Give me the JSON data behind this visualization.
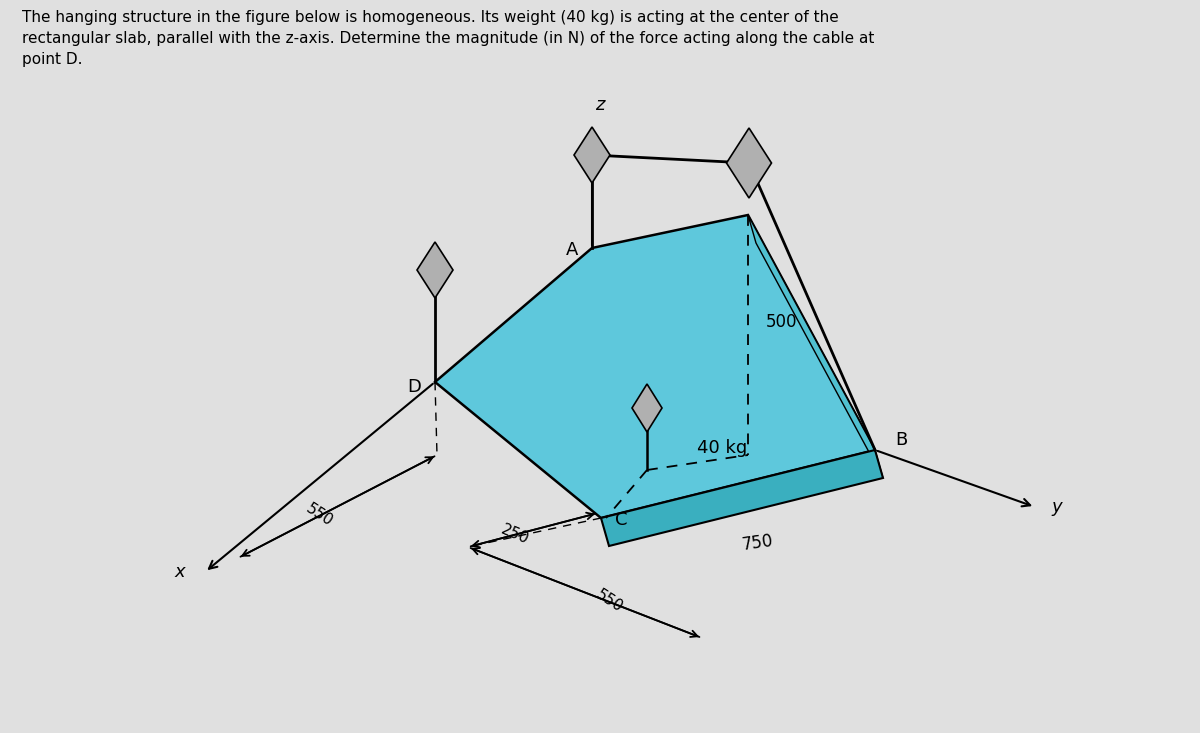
{
  "title_text": "The hanging structure in the figure below is homogeneous. Its weight (40 kg) is acting at the center of the\nrectangular slab, parallel with the z-axis. Determine the magnitude (in N) of the force acting along the cable at\npoint D.",
  "bg_color": "#e0e0e0",
  "slab_top_color": "#5ec8dc",
  "slab_side_color": "#3aafbf",
  "slab_edge_color": "#000000",
  "anchor_color": "#a8a8a8",
  "dim_500": "500",
  "dim_250": "250",
  "dim_550a": "550",
  "dim_550b": "550",
  "dim_750": "750",
  "weight_label": "40 kg",
  "point_A": "A",
  "point_B": "B",
  "point_C": "C",
  "point_D": "D",
  "axis_x": "x",
  "axis_y": "y",
  "axis_z": "z",
  "fig_width": 12.0,
  "fig_height": 7.33,
  "dpi": 100
}
